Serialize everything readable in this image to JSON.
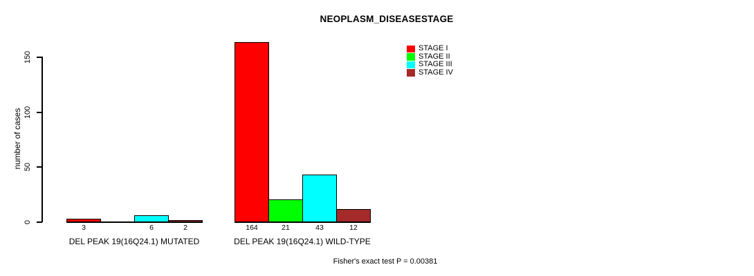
{
  "title": "NEOPLASM_DISEASESTAGE",
  "y_axis": {
    "label": "number of cases",
    "ticks": [
      0,
      50,
      100,
      150
    ]
  },
  "legend": {
    "items": [
      {
        "label": "STAGE I",
        "color": "#FF0000"
      },
      {
        "label": "STAGE II",
        "color": "#00FF00"
      },
      {
        "label": "STAGE III",
        "color": "#00FFFF"
      },
      {
        "label": "STAGE IV",
        "color": "#A52A2A"
      }
    ]
  },
  "footer": "Fisher's exact test P = 0.00381",
  "chart_data": {
    "type": "bar",
    "title": "NEOPLASM_DISEASESTAGE",
    "xlabel": "",
    "ylabel": "number of cases",
    "ylim": [
      0,
      164
    ],
    "yticks": [
      0,
      50,
      100,
      150
    ],
    "categories": [
      "DEL PEAK 19(16Q24.1) MUTATED",
      "DEL PEAK 19(16Q24.1) WILD-TYPE"
    ],
    "series": [
      {
        "name": "STAGE I",
        "color": "#FF0000",
        "values": [
          3,
          164
        ]
      },
      {
        "name": "STAGE II",
        "color": "#00FF00",
        "values": [
          0,
          21
        ]
      },
      {
        "name": "STAGE III",
        "color": "#00FFFF",
        "values": [
          6,
          43
        ]
      },
      {
        "name": "STAGE IV",
        "color": "#A52A2A",
        "values": [
          2,
          12
        ]
      }
    ],
    "value_labels_shown": true,
    "zero_value_labels_hidden": true,
    "annotation": "Fisher's exact test P = 0.00381",
    "legend_position": "top-right",
    "grid": false
  }
}
